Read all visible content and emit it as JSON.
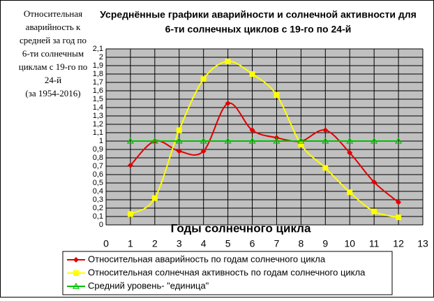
{
  "chart_data": {
    "type": "line",
    "title": [
      "Усреднённые графики аварийности и солнечной активности для",
      "6-ти солнечных циклов с 19-го по 24-й"
    ],
    "ylabel": [
      "Относительная",
      "аварийность к",
      "средней за год по",
      "6-ти солнечным",
      "циклам с 19-го по",
      "24-й",
      "(за 1954-2016)"
    ],
    "xlabel": "Годы солнечного цикла",
    "x": [
      1,
      2,
      3,
      4,
      5,
      6,
      7,
      8,
      9,
      10,
      11,
      12
    ],
    "series": [
      {
        "name": "Относительная аварийность по годам солнечного цикла",
        "color": "#e00000",
        "marker": "diamond",
        "values": [
          0.71,
          1.0,
          0.88,
          0.88,
          1.45,
          1.13,
          1.04,
          1.0,
          1.13,
          0.86,
          0.51,
          0.27
        ]
      },
      {
        "name": "Относительная солнечная активность по годам солнечного цикла",
        "color": "#ffff00",
        "marker": "square",
        "values": [
          0.13,
          0.32,
          1.13,
          1.74,
          1.95,
          1.8,
          1.55,
          0.96,
          0.68,
          0.39,
          0.16,
          0.09
        ]
      },
      {
        "name": "Средний уровень- \"единица\"",
        "color": "#00c000",
        "marker": "triangle",
        "values": [
          1,
          1,
          1,
          1,
          1,
          1,
          1,
          1,
          1,
          1,
          1,
          1
        ]
      }
    ],
    "xlim": [
      0,
      13
    ],
    "xticks": [
      0,
      1,
      2,
      3,
      4,
      5,
      6,
      7,
      8,
      9,
      10,
      11,
      12,
      13
    ],
    "ylim": [
      0,
      2.1
    ],
    "yticks": [
      0,
      {
        "value": 0.1,
        "label": "0,1"
      },
      {
        "value": 0.2,
        "label": "0,2"
      },
      {
        "value": 0.3,
        "label": "0,3"
      },
      {
        "value": 0.4,
        "label": "0,4"
      },
      {
        "value": 0.5,
        "label": "0,5"
      },
      {
        "value": 0.6,
        "label": "0,6"
      },
      {
        "value": 0.7,
        "label": "0,7"
      },
      {
        "value": 0.8,
        "label": "0,8"
      },
      {
        "value": 0.9,
        "label": "0,9"
      },
      1,
      {
        "value": 1.1,
        "label": "1,1"
      },
      {
        "value": 1.2,
        "label": "1,2"
      },
      {
        "value": 1.3,
        "label": "1,3"
      },
      {
        "value": 1.4,
        "label": "1,4"
      },
      {
        "value": 1.5,
        "label": "1,5"
      },
      {
        "value": 1.6,
        "label": "1,6"
      },
      {
        "value": 1.7,
        "label": "1,7"
      },
      {
        "value": 1.8,
        "label": "1,8"
      },
      {
        "value": 1.9,
        "label": "1,9"
      },
      2,
      {
        "value": 2.1,
        "label": "2,1"
      }
    ],
    "grid": true,
    "background": "#c0c0c0",
    "legend": "bottom"
  }
}
